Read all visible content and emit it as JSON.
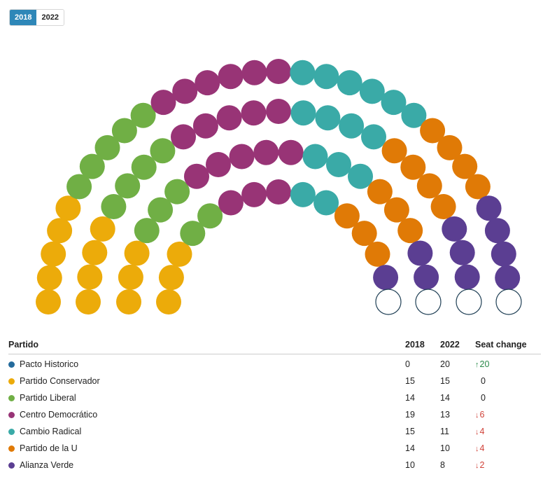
{
  "toggle": {
    "options": [
      "2018",
      "2022"
    ],
    "selected": "2018",
    "active_color": "#2e87b8"
  },
  "table": {
    "headers": {
      "party": "Partido",
      "y2018": "2018",
      "y2022": "2022",
      "change": "Seat change"
    }
  },
  "chart_data": {
    "type": "parliament",
    "year_shown": "2018",
    "empty_seats": 4,
    "series": [
      {
        "name": "Pacto Historico",
        "color": "#246b9c",
        "seats_2018": 0,
        "seats_2022": 20,
        "change": "20",
        "direction": "up"
      },
      {
        "name": "Partido Conservador",
        "color": "#ecab0a",
        "seats_2018": 15,
        "seats_2022": 15,
        "change": "0",
        "direction": "none"
      },
      {
        "name": "Partido Liberal",
        "color": "#70af45",
        "seats_2018": 14,
        "seats_2022": 14,
        "change": "0",
        "direction": "none"
      },
      {
        "name": "Centro Democrático",
        "color": "#983476",
        "seats_2018": 19,
        "seats_2022": 13,
        "change": "6",
        "direction": "down"
      },
      {
        "name": "Cambio Radical",
        "color": "#3aaaa7",
        "seats_2018": 15,
        "seats_2022": 11,
        "change": "4",
        "direction": "down"
      },
      {
        "name": "Partido de la U",
        "color": "#e07a06",
        "seats_2018": 14,
        "seats_2022": 10,
        "change": "4",
        "direction": "down"
      },
      {
        "name": "Alianza Verde",
        "color": "#5b3e92",
        "seats_2018": 10,
        "seats_2022": 8,
        "change": "2",
        "direction": "down"
      }
    ]
  }
}
